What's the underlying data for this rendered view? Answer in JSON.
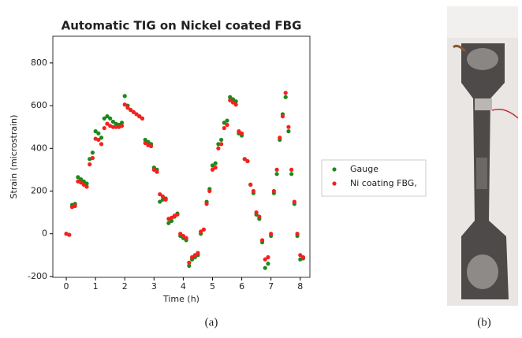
{
  "chart_data": {
    "type": "scatter",
    "title": "Automatic TIG on Nickel coated FBG",
    "x_label": "Time (h)",
    "y_label": "Strain (microstrain)",
    "x": [
      0,
      0.1,
      0.2,
      0.3,
      0.4,
      0.5,
      0.6,
      0.7,
      0.8,
      0.9,
      1.0,
      1.1,
      1.2,
      1.3,
      1.4,
      1.5,
      1.6,
      1.7,
      1.8,
      1.9,
      2.0,
      2.1,
      2.2,
      2.3,
      2.4,
      2.5,
      2.6,
      2.7,
      2.8,
      2.9,
      3.0,
      3.1,
      3.2,
      3.3,
      3.4,
      3.5,
      3.6,
      3.7,
      3.8,
      3.9,
      4.0,
      4.1,
      4.2,
      4.3,
      4.4,
      4.5,
      4.6,
      4.7,
      4.8,
      4.9,
      5.0,
      5.1,
      5.2,
      5.3,
      5.4,
      5.5,
      5.6,
      5.7,
      5.8,
      5.9,
      6.0,
      6.1,
      6.2,
      6.3,
      6.4,
      6.5,
      6.6,
      6.7,
      6.8,
      6.9,
      7.0,
      7.1,
      7.2,
      7.3,
      7.4,
      7.5,
      7.6,
      7.7,
      7.8,
      7.9,
      8.0,
      8.1
    ],
    "series": [
      {
        "name": "Gauge",
        "color": "#1a8a1a",
        "values": [
          0,
          -5,
          135,
          140,
          265,
          255,
          245,
          235,
          350,
          380,
          480,
          470,
          450,
          540,
          550,
          540,
          525,
          515,
          510,
          520,
          645,
          600,
          580,
          570,
          560,
          550,
          540,
          440,
          430,
          420,
          310,
          300,
          150,
          160,
          165,
          50,
          60,
          80,
          95,
          -10,
          -20,
          -30,
          -150,
          -120,
          -110,
          -100,
          0,
          20,
          150,
          210,
          320,
          330,
          420,
          440,
          520,
          530,
          640,
          630,
          620,
          470,
          460,
          350,
          340,
          230,
          190,
          90,
          70,
          -40,
          -160,
          -140,
          -10,
          190,
          280,
          440,
          560,
          640,
          480,
          280,
          140,
          -10,
          -120,
          -115
        ]
      },
      {
        "name": "Ni coating FBG,",
        "color": "#f52020",
        "values": [
          0,
          -5,
          125,
          130,
          245,
          240,
          230,
          220,
          325,
          355,
          445,
          440,
          420,
          495,
          515,
          505,
          500,
          500,
          500,
          505,
          605,
          590,
          580,
          570,
          560,
          550,
          540,
          425,
          415,
          410,
          300,
          290,
          185,
          175,
          160,
          70,
          75,
          85,
          90,
          0,
          -10,
          -20,
          -135,
          -110,
          -100,
          -90,
          10,
          20,
          140,
          200,
          300,
          310,
          400,
          420,
          495,
          510,
          625,
          615,
          605,
          480,
          470,
          350,
          340,
          230,
          200,
          100,
          80,
          -30,
          -120,
          -110,
          0,
          200,
          300,
          450,
          550,
          660,
          500,
          300,
          150,
          0,
          -100,
          -110
        ]
      }
    ],
    "xlim": [
      -0.46,
      8.33
    ],
    "ylim": [
      -204,
      925
    ],
    "xticks": [
      0,
      1,
      2,
      3,
      4,
      5,
      6,
      7,
      8
    ],
    "yticks": [
      -200,
      0,
      200,
      400,
      600,
      800
    ]
  },
  "captions": [
    "(a)",
    "(b)"
  ]
}
